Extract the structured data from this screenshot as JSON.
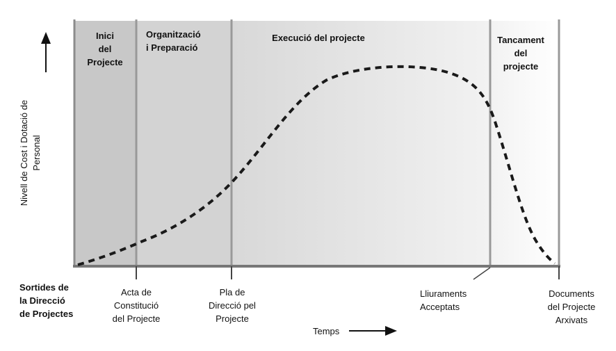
{
  "phases": [
    {
      "label": "Inici\ndel\nProjecte",
      "fill": "#c8c8c8"
    },
    {
      "label": "Organització\ni Preparació",
      "fill": "#d2d2d2"
    },
    {
      "label": "Execució del projecte",
      "fill": "#e0e0e0"
    },
    {
      "label": "Tancament\ndel\nprojecte",
      "fill": "#fafafa"
    }
  ],
  "y_axis_label": "Nivell de Cost i Dotació de\nPersonal",
  "x_axis_label": "Temps",
  "outputs": {
    "heading": "Sortides de\nla Direcció\nde Projectes",
    "items": [
      "Acta de\nConstitució\ndel Projecte",
      "Pla de\nDirecció pel\nProjecte",
      "Lliuraments\nAcceptats",
      "Documents\ndel Projecte\nArxivats"
    ]
  },
  "colors": {
    "axis": "#777777",
    "divider": "#999999",
    "curve": "#1a1a1a",
    "arrow": "#111111"
  }
}
